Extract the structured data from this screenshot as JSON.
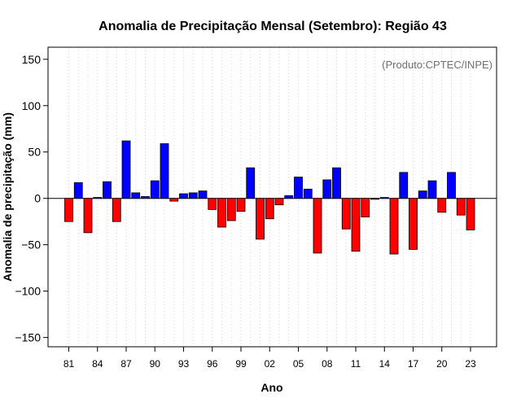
{
  "chart_data": {
    "type": "bar",
    "title": "Anomalia de Precipitação Mensal (Setembro): Região 43",
    "xlabel": "Ano",
    "ylabel": "Anomalia de precipitação (mm)",
    "annotation": "(Produto:CPTEC/INPE)",
    "ylim": [
      -160,
      163
    ],
    "yticks": [
      -150,
      -100,
      -50,
      0,
      50,
      100,
      150
    ],
    "grid": "vertical dotted",
    "colors": {
      "positive": "#0000ff",
      "negative": "#ff0000",
      "annotation": "#707070",
      "grid": "#d3d3d3"
    },
    "xtick_labels": [
      "81",
      "84",
      "87",
      "90",
      "93",
      "96",
      "99",
      "02",
      "05",
      "08",
      "11",
      "14",
      "17",
      "20",
      "23"
    ],
    "categories": [
      "1981",
      "1982",
      "1983",
      "1984",
      "1985",
      "1986",
      "1987",
      "1988",
      "1989",
      "1990",
      "1991",
      "1992",
      "1993",
      "1994",
      "1995",
      "1996",
      "1997",
      "1998",
      "1999",
      "2000",
      "2001",
      "2002",
      "2003",
      "2004",
      "2005",
      "2006",
      "2007",
      "2008",
      "2009",
      "2010",
      "2011",
      "2012",
      "2013",
      "2014",
      "2015",
      "2016",
      "2017",
      "2018",
      "2019",
      "2020",
      "2021",
      "2022",
      "2023"
    ],
    "values": [
      -25,
      17,
      -37,
      1,
      18,
      -25,
      62,
      6,
      2,
      19,
      59,
      -3,
      5,
      6,
      8,
      -12,
      -31,
      -24,
      -14,
      33,
      -44,
      -22,
      -7,
      3,
      23,
      10,
      -59,
      20,
      33,
      -33,
      -57,
      -20,
      -1,
      1,
      -60,
      28,
      -55,
      8,
      19,
      -15,
      28,
      -18,
      -34
    ]
  }
}
